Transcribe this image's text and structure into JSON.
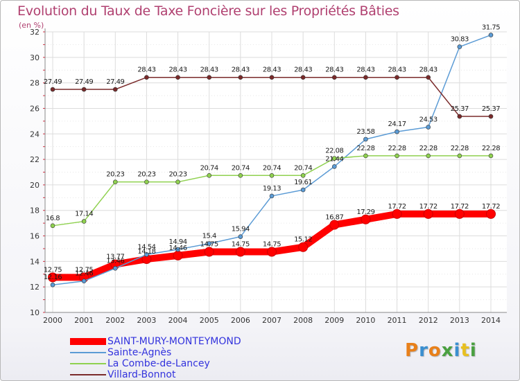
{
  "title": "Evolution du Taux de Taxe Foncière sur les Propriétés Bâties",
  "unit_label": "(en %)",
  "logo": {
    "letters": [
      "P",
      "r",
      "o",
      "x",
      "i",
      "t",
      "i"
    ],
    "colors": [
      "#e8801a",
      "#3a8fd0",
      "#e8801a",
      "#4aa040",
      "#3a8fd0",
      "#e8c020",
      "#4aa040"
    ]
  },
  "chart_data": {
    "type": "line",
    "title": "Evolution du Taux de Taxe Foncière sur les Propriétés Bâties",
    "ylabel": "(en %)",
    "xlabel": "",
    "ylim": [
      10,
      32
    ],
    "yticks": [
      10,
      12,
      14,
      16,
      18,
      20,
      22,
      24,
      26,
      28,
      30,
      32
    ],
    "categories": [
      "2000",
      "2001",
      "2002",
      "2003",
      "2004",
      "2005",
      "2006",
      "2007",
      "2008",
      "2009",
      "2010",
      "2011",
      "2012",
      "2013",
      "2014"
    ],
    "grid": true,
    "series": [
      {
        "name": "SAINT-MURY-MONTEYMOND",
        "color": "#ff0000",
        "labelColor": "#1a1a1a",
        "thick": true,
        "values": [
          12.75,
          12.75,
          13.77,
          14.18,
          14.46,
          14.75,
          14.75,
          14.75,
          15.12,
          16.87,
          17.29,
          17.72,
          17.72,
          17.72,
          17.72
        ],
        "labels": [
          "12.75",
          "12.75",
          "13.77",
          "14.18",
          "14.46",
          "14.75",
          "14.75",
          "14.75",
          "15.12",
          "16.87",
          "17.29",
          "17.72",
          "17.72",
          "17.72",
          "17.72"
        ]
      },
      {
        "name": "Sainte-Agnès",
        "color": "#5b9bd5",
        "labelColor": "#1a1a1a",
        "thick": false,
        "values": [
          12.16,
          12.46,
          13.46,
          14.54,
          14.94,
          15.4,
          15.94,
          19.13,
          19.61,
          21.44,
          23.58,
          24.17,
          24.53,
          30.83,
          31.75
        ],
        "labels": [
          "12.16",
          "12.46",
          "13.46",
          "14.54",
          "14.94",
          "15.4",
          "15.94",
          "19.13",
          "19.61",
          "21.44",
          "23.58",
          "24.17",
          "24.53",
          "30.83",
          "31.75"
        ]
      },
      {
        "name": "La Combe-de-Lancey",
        "color": "#8fd14f",
        "labelColor": "#1a1a1a",
        "thick": false,
        "values": [
          16.8,
          17.14,
          20.23,
          20.23,
          20.23,
          20.74,
          20.74,
          20.74,
          20.74,
          22.08,
          22.28,
          22.28,
          22.28,
          22.28,
          22.28
        ],
        "labels": [
          "16.8",
          "17.14",
          "20.23",
          "20.23",
          "20.23",
          "20.74",
          "20.74",
          "20.74",
          "20.74",
          "22.08",
          "22.28",
          "22.28",
          "22.28",
          "22.28",
          "22.28"
        ]
      },
      {
        "name": "Villard-Bonnot",
        "color": "#7a2a2a",
        "labelColor": "#1a1a1a",
        "thick": false,
        "values": [
          27.49,
          27.49,
          27.49,
          28.43,
          28.43,
          28.43,
          28.43,
          28.43,
          28.43,
          28.43,
          28.43,
          28.43,
          28.43,
          25.37,
          25.37
        ],
        "labels": [
          "27.49",
          "27.49",
          "27.49",
          "28.43",
          "28.43",
          "28.43",
          "28.43",
          "28.43",
          "28.43",
          "28.43",
          "28.43",
          "28.43",
          "28.43",
          "25.37",
          "25.37"
        ]
      }
    ],
    "legend": [
      {
        "label": "SAINT-MURY-MONTEYMOND",
        "color": "#ff0000",
        "textColor": "#3333dd"
      },
      {
        "label": "Sainte-Agnès",
        "color": "#5b9bd5",
        "textColor": "#3333dd"
      },
      {
        "label": "La Combe-de-Lancey",
        "color": "#8fd14f",
        "textColor": "#3333dd"
      },
      {
        "label": "Villard-Bonnot",
        "color": "#7a2a2a",
        "textColor": "#3333dd"
      }
    ],
    "legend_position": "bottom-left"
  }
}
